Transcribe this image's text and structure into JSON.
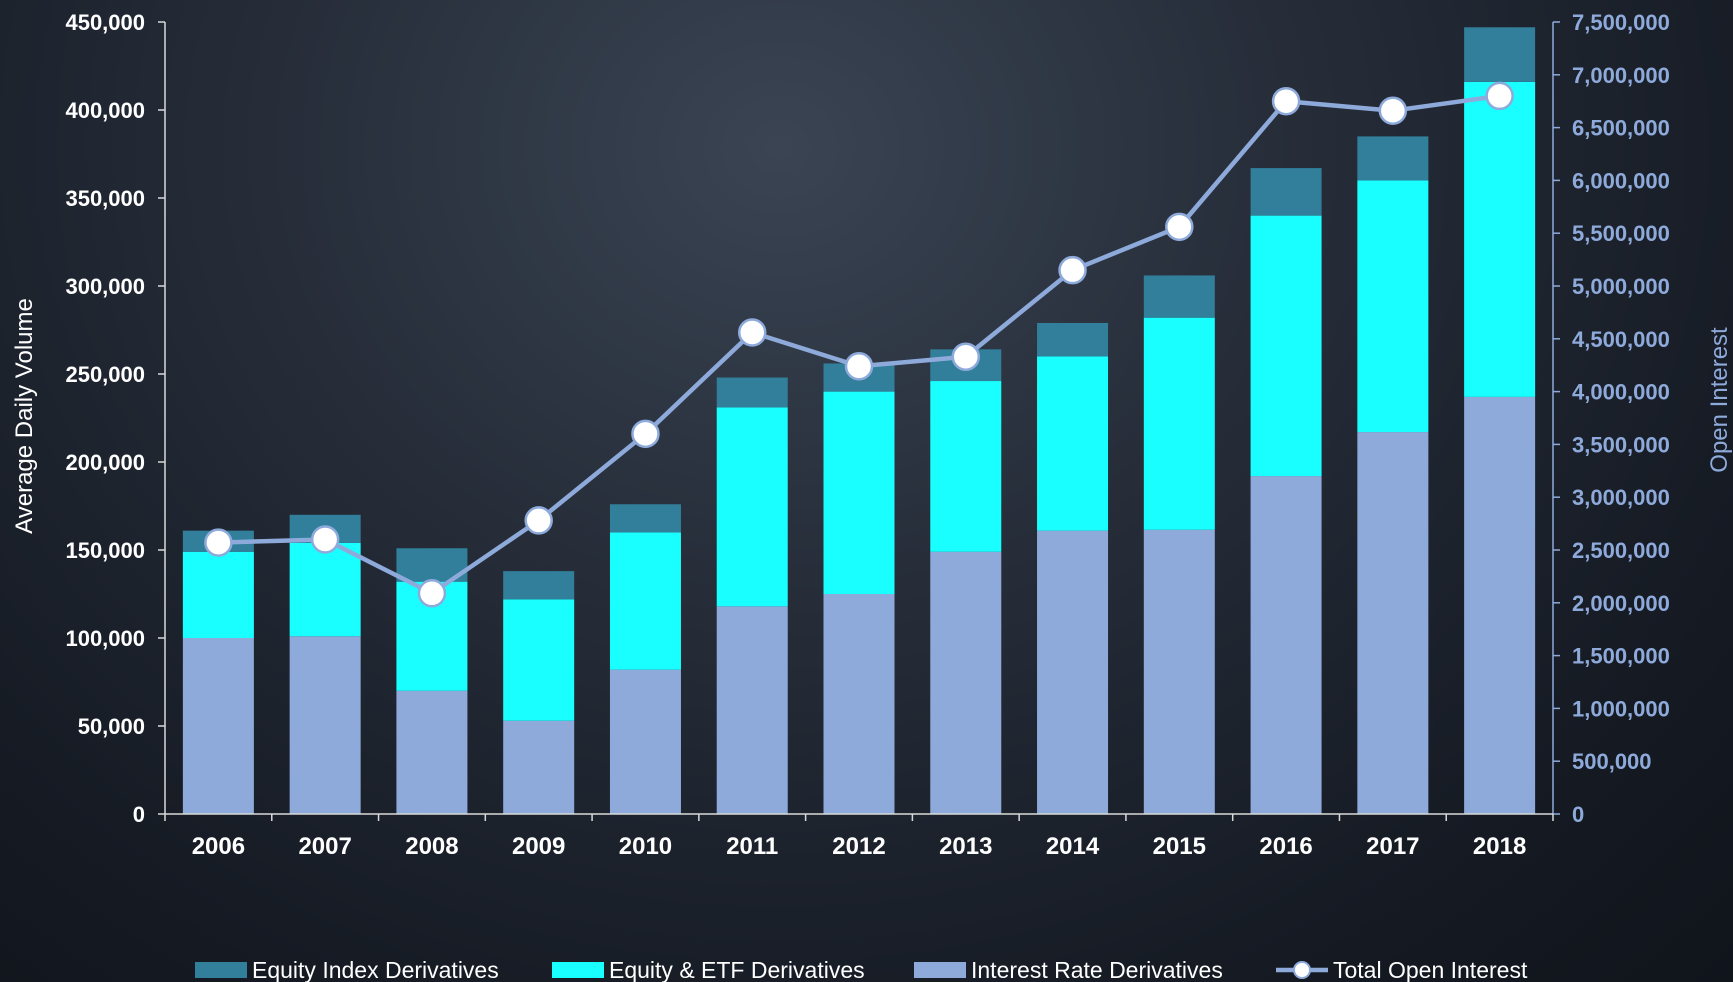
{
  "chart_data": {
    "type": "bar",
    "stacked": true,
    "categories": [
      "2006",
      "2007",
      "2008",
      "2009",
      "2010",
      "2011",
      "2012",
      "2013",
      "2014",
      "2015",
      "2016",
      "2017",
      "2018"
    ],
    "series": [
      {
        "name": "Interest Rate Derivatives",
        "type": "bar",
        "axis": "left",
        "color": "#8eaadb",
        "values": [
          100000,
          101000,
          70000,
          53000,
          82000,
          118000,
          125000,
          149000,
          161000,
          161500,
          192000,
          217000,
          237000
        ]
      },
      {
        "name": "Equity & ETF Derivatives",
        "type": "bar",
        "axis": "left",
        "color": "#19fefe",
        "values": [
          49000,
          53000,
          62000,
          69000,
          78000,
          113000,
          115000,
          97000,
          99000,
          120500,
          148000,
          143000,
          179000
        ]
      },
      {
        "name": "Equity Index Derivatives",
        "type": "bar",
        "axis": "left",
        "color": "#317f9a",
        "values": [
          12000,
          16000,
          19000,
          16000,
          16000,
          17000,
          16000,
          18000,
          19000,
          24000,
          27000,
          25000,
          31000
        ]
      },
      {
        "name": "Total Open Interest",
        "type": "line",
        "axis": "right",
        "color": "#8eaadb",
        "marker_color": "#ffffff",
        "values": [
          2570000,
          2600000,
          2090000,
          2780000,
          3600000,
          4560000,
          4240000,
          4330000,
          5150000,
          5560000,
          6750000,
          6660000,
          6800000
        ]
      }
    ],
    "ylabel": "Average Daily Volume",
    "y2label": "Open Interest",
    "ylim": [
      0,
      450000
    ],
    "y2lim": [
      0,
      7500000
    ],
    "yticks": [
      "0",
      "50,000",
      "100,000",
      "150,000",
      "200,000",
      "250,000",
      "300,000",
      "350,000",
      "400,000",
      "450,000"
    ],
    "y2ticks": [
      "0",
      "500,000",
      "1,000,000",
      "1,500,000",
      "2,000,000",
      "2,500,000",
      "3,000,000",
      "3,500,000",
      "4,000,000",
      "4,500,000",
      "5,000,000",
      "5,500,000",
      "6,000,000",
      "6,500,000",
      "7,000,000",
      "7,500,000"
    ],
    "legend": [
      "Equity Index Derivatives",
      "Equity & ETF Derivatives",
      "Interest Rate Derivatives",
      "Total Open Interest"
    ],
    "legend_position": "bottom",
    "grid": false
  }
}
